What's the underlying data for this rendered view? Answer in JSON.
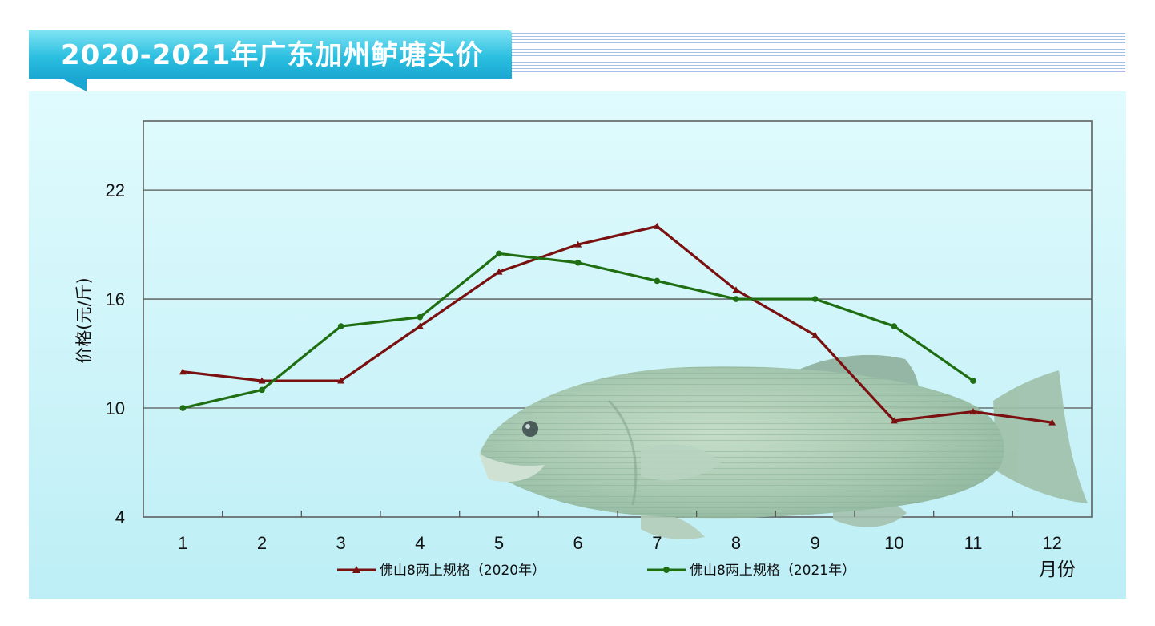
{
  "header": {
    "title": "2020-2021年广东加州鲈塘头价"
  },
  "chart_data": {
    "type": "line",
    "title": "2020-2021年广东加州鲈塘头价",
    "xlabel": "月份",
    "ylabel": "价格(元/斤)",
    "categories": [
      "1",
      "2",
      "3",
      "4",
      "5",
      "6",
      "7",
      "8",
      "9",
      "10",
      "11",
      "12"
    ],
    "ylim": [
      4,
      25.8
    ],
    "yticks": [
      "4",
      "10",
      "16",
      "22"
    ],
    "ytick_values": [
      4,
      10,
      16,
      22
    ],
    "grid": true,
    "legend_position": "bottom",
    "series": [
      {
        "name": "佛山8两上规格（2020年）",
        "color": "#7a1010",
        "marker": "triangle",
        "values": [
          12,
          11.5,
          11.5,
          14.5,
          17.5,
          19,
          20,
          16.5,
          14,
          9.3,
          9.8,
          9.2
        ]
      },
      {
        "name": "佛山8两上规格（2021年）",
        "color": "#1f6f12",
        "marker": "circle",
        "values": [
          10,
          11,
          14.5,
          15,
          18.5,
          18,
          17,
          16,
          16,
          14.5,
          11.5,
          null
        ]
      }
    ]
  }
}
